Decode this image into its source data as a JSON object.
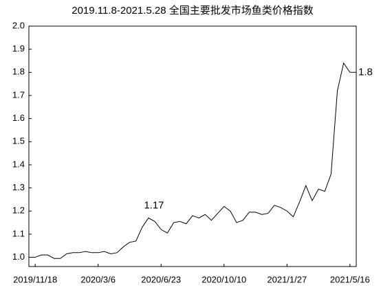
{
  "chart_data": {
    "type": "line",
    "title": "2019.11.8-2021.5.28 全国主要批发市场鱼类价格指数",
    "categories": [
      null,
      "2019/11/18",
      null,
      null,
      null,
      null,
      null,
      null,
      null,
      null,
      null,
      "2020/3/6",
      null,
      null,
      null,
      null,
      null,
      null,
      null,
      null,
      null,
      "2020/6/23",
      null,
      null,
      null,
      null,
      null,
      null,
      null,
      null,
      null,
      "2020/10/10",
      null,
      null,
      null,
      null,
      null,
      null,
      null,
      null,
      null,
      "2021/1/27",
      null,
      null,
      null,
      null,
      null,
      null,
      null,
      null,
      null,
      "2021/5/16",
      null
    ],
    "values": [
      1.0,
      1.0,
      1.01,
      1.01,
      0.995,
      0.995,
      1.015,
      1.02,
      1.02,
      1.025,
      1.02,
      1.02,
      1.025,
      1.015,
      1.02,
      1.045,
      1.065,
      1.07,
      1.13,
      1.17,
      1.155,
      1.12,
      1.105,
      1.15,
      1.155,
      1.145,
      1.18,
      1.17,
      1.185,
      1.16,
      1.19,
      1.22,
      1.2,
      1.15,
      1.16,
      1.195,
      1.195,
      1.185,
      1.19,
      1.225,
      1.215,
      1.2,
      1.175,
      1.24,
      1.31,
      1.245,
      1.295,
      1.285,
      1.36,
      1.72,
      1.84,
      1.8,
      1.8
    ],
    "value_labels": [
      null,
      null,
      null,
      null,
      null,
      null,
      null,
      null,
      null,
      null,
      null,
      null,
      null,
      null,
      null,
      null,
      null,
      null,
      null,
      "1.17",
      null,
      null,
      null,
      null,
      null,
      null,
      null,
      null,
      null,
      null,
      null,
      null,
      null,
      null,
      null,
      null,
      null,
      null,
      null,
      null,
      null,
      null,
      null,
      null,
      null,
      null,
      null,
      null,
      null,
      null,
      null,
      null,
      "1.8"
    ],
    "color": "#000000",
    "ylim": [
      0.96,
      2.0
    ],
    "yticks": [
      {
        "value": 1.0,
        "label": "1.0"
      },
      1.1,
      1.2,
      1.3,
      1.4,
      1.5,
      1.6,
      1.7,
      1.8,
      1.9,
      {
        "value": 2.0,
        "label": "2.0"
      }
    ]
  }
}
